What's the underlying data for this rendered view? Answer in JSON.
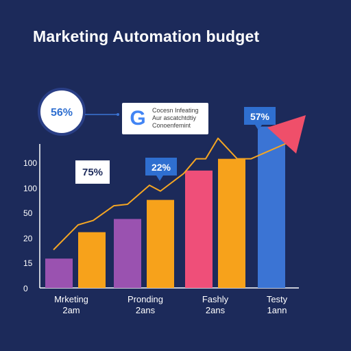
{
  "title": "Marketing Automation budget",
  "colors": {
    "background": "#1c2a5a",
    "purple": "#9a52b0",
    "orange": "#f7a21b",
    "pink": "#ef4f79",
    "blue": "#3b74d4",
    "trend": "#f5a623",
    "arrow": "#ef4f6a",
    "badge_blue": "#2f6fd0",
    "circle_text": "#2f6fd0"
  },
  "icons": [
    "google-logo-icon",
    "trend-arrow-icon"
  ],
  "callouts": {
    "circle_label": "56%",
    "google_card": {
      "logo_letter": "G",
      "lines": [
        "Cocesn Infeating",
        "Aur ascatchtdtiy",
        "Conoenfemint"
      ]
    },
    "badge_75": "75%",
    "badge_22": "22%",
    "badge_57": "57%"
  },
  "chart_data": {
    "type": "bar",
    "title": "Marketing Automation budget",
    "y_ticks": [
      "0",
      "15",
      "20",
      "50",
      "100",
      "100"
    ],
    "category_labels": [
      [
        "Mrketing",
        "2am"
      ],
      [
        "Pronding",
        "2ans"
      ],
      [
        "Fashly",
        "2ans"
      ],
      [
        "Testy",
        "1ann"
      ]
    ],
    "bars": [
      {
        "group": 0,
        "color": "purple",
        "value": 0.2
      },
      {
        "group": 0,
        "color": "orange",
        "value": 0.38
      },
      {
        "group": 1,
        "color": "purple",
        "value": 0.47
      },
      {
        "group": 1,
        "color": "orange",
        "value": 0.6
      },
      {
        "group": 2,
        "color": "pink",
        "value": 0.8
      },
      {
        "group": 2,
        "color": "orange",
        "value": 0.88
      },
      {
        "group": 3,
        "color": "blue",
        "value": 1.1
      }
    ],
    "trend_line": [
      0.26,
      0.43,
      0.46,
      0.56,
      0.57,
      0.7,
      0.66,
      0.78,
      0.88,
      0.88,
      1.02,
      0.88,
      0.88,
      0.99
    ],
    "grid": false
  }
}
